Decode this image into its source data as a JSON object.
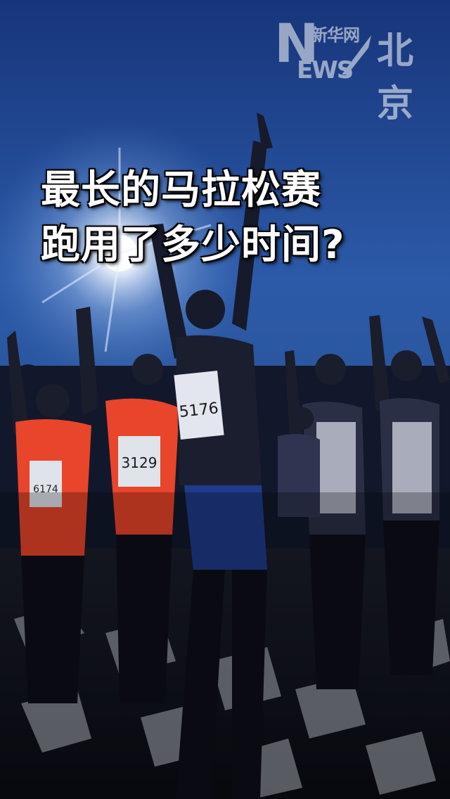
{
  "headline": {
    "line1": "最长的马拉松赛",
    "line2": "跑用了多少时间?"
  },
  "watermark": {
    "logo_letter": "N",
    "logo_cn": "新华网",
    "logo_en": "EWS",
    "city": "北京"
  },
  "photo": {
    "bibs": [
      "5176",
      "3129"
    ]
  },
  "colors": {
    "sky_top": "#1a3f8f",
    "sky_bottom": "#3a6fc4",
    "sun": "#ffffff",
    "shirt_orange": "#e8452a"
  }
}
